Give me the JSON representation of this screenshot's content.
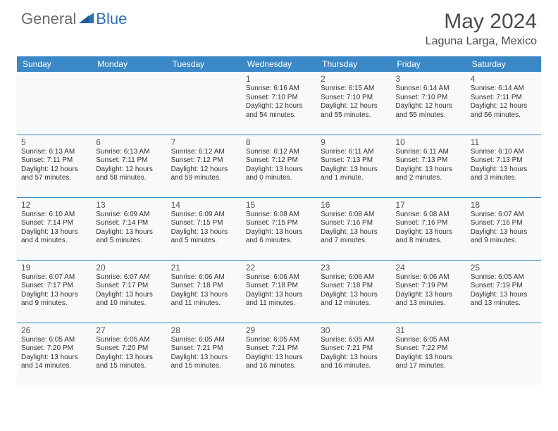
{
  "logo": {
    "text1": "General",
    "text2": "Blue"
  },
  "title": "May 2024",
  "location": "Laguna Larga, Mexico",
  "day_headers": [
    "Sunday",
    "Monday",
    "Tuesday",
    "Wednesday",
    "Thursday",
    "Friday",
    "Saturday"
  ],
  "colors": {
    "header_bg": "#3b88c7",
    "header_text": "#ffffff",
    "row_border": "#3b88c7",
    "cell_bg": "#f7f9fa",
    "logo_gray": "#6a6a6a",
    "logo_blue": "#2d6fb4",
    "title_color": "#4a4a4a"
  },
  "weeks": [
    [
      null,
      null,
      null,
      {
        "day": "1",
        "sunrise": "6:16 AM",
        "sunset": "7:10 PM",
        "daylight": "12 hours and 54 minutes."
      },
      {
        "day": "2",
        "sunrise": "6:15 AM",
        "sunset": "7:10 PM",
        "daylight": "12 hours and 55 minutes."
      },
      {
        "day": "3",
        "sunrise": "6:14 AM",
        "sunset": "7:10 PM",
        "daylight": "12 hours and 55 minutes."
      },
      {
        "day": "4",
        "sunrise": "6:14 AM",
        "sunset": "7:11 PM",
        "daylight": "12 hours and 56 minutes."
      }
    ],
    [
      {
        "day": "5",
        "sunrise": "6:13 AM",
        "sunset": "7:11 PM",
        "daylight": "12 hours and 57 minutes."
      },
      {
        "day": "6",
        "sunrise": "6:13 AM",
        "sunset": "7:11 PM",
        "daylight": "12 hours and 58 minutes."
      },
      {
        "day": "7",
        "sunrise": "6:12 AM",
        "sunset": "7:12 PM",
        "daylight": "12 hours and 59 minutes."
      },
      {
        "day": "8",
        "sunrise": "6:12 AM",
        "sunset": "7:12 PM",
        "daylight": "13 hours and 0 minutes."
      },
      {
        "day": "9",
        "sunrise": "6:11 AM",
        "sunset": "7:13 PM",
        "daylight": "13 hours and 1 minute."
      },
      {
        "day": "10",
        "sunrise": "6:11 AM",
        "sunset": "7:13 PM",
        "daylight": "13 hours and 2 minutes."
      },
      {
        "day": "11",
        "sunrise": "6:10 AM",
        "sunset": "7:13 PM",
        "daylight": "13 hours and 3 minutes."
      }
    ],
    [
      {
        "day": "12",
        "sunrise": "6:10 AM",
        "sunset": "7:14 PM",
        "daylight": "13 hours and 4 minutes."
      },
      {
        "day": "13",
        "sunrise": "6:09 AM",
        "sunset": "7:14 PM",
        "daylight": "13 hours and 5 minutes."
      },
      {
        "day": "14",
        "sunrise": "6:09 AM",
        "sunset": "7:15 PM",
        "daylight": "13 hours and 5 minutes."
      },
      {
        "day": "15",
        "sunrise": "6:08 AM",
        "sunset": "7:15 PM",
        "daylight": "13 hours and 6 minutes."
      },
      {
        "day": "16",
        "sunrise": "6:08 AM",
        "sunset": "7:16 PM",
        "daylight": "13 hours and 7 minutes."
      },
      {
        "day": "17",
        "sunrise": "6:08 AM",
        "sunset": "7:16 PM",
        "daylight": "13 hours and 8 minutes."
      },
      {
        "day": "18",
        "sunrise": "6:07 AM",
        "sunset": "7:16 PM",
        "daylight": "13 hours and 9 minutes."
      }
    ],
    [
      {
        "day": "19",
        "sunrise": "6:07 AM",
        "sunset": "7:17 PM",
        "daylight": "13 hours and 9 minutes."
      },
      {
        "day": "20",
        "sunrise": "6:07 AM",
        "sunset": "7:17 PM",
        "daylight": "13 hours and 10 minutes."
      },
      {
        "day": "21",
        "sunrise": "6:06 AM",
        "sunset": "7:18 PM",
        "daylight": "13 hours and 11 minutes."
      },
      {
        "day": "22",
        "sunrise": "6:06 AM",
        "sunset": "7:18 PM",
        "daylight": "13 hours and 11 minutes."
      },
      {
        "day": "23",
        "sunrise": "6:06 AM",
        "sunset": "7:18 PM",
        "daylight": "13 hours and 12 minutes."
      },
      {
        "day": "24",
        "sunrise": "6:06 AM",
        "sunset": "7:19 PM",
        "daylight": "13 hours and 13 minutes."
      },
      {
        "day": "25",
        "sunrise": "6:05 AM",
        "sunset": "7:19 PM",
        "daylight": "13 hours and 13 minutes."
      }
    ],
    [
      {
        "day": "26",
        "sunrise": "6:05 AM",
        "sunset": "7:20 PM",
        "daylight": "13 hours and 14 minutes."
      },
      {
        "day": "27",
        "sunrise": "6:05 AM",
        "sunset": "7:20 PM",
        "daylight": "13 hours and 15 minutes."
      },
      {
        "day": "28",
        "sunrise": "6:05 AM",
        "sunset": "7:21 PM",
        "daylight": "13 hours and 15 minutes."
      },
      {
        "day": "29",
        "sunrise": "6:05 AM",
        "sunset": "7:21 PM",
        "daylight": "13 hours and 16 minutes."
      },
      {
        "day": "30",
        "sunrise": "6:05 AM",
        "sunset": "7:21 PM",
        "daylight": "13 hours and 16 minutes."
      },
      {
        "day": "31",
        "sunrise": "6:05 AM",
        "sunset": "7:22 PM",
        "daylight": "13 hours and 17 minutes."
      },
      null
    ]
  ],
  "labels": {
    "sunrise": "Sunrise: ",
    "sunset": "Sunset: ",
    "daylight": "Daylight: "
  }
}
